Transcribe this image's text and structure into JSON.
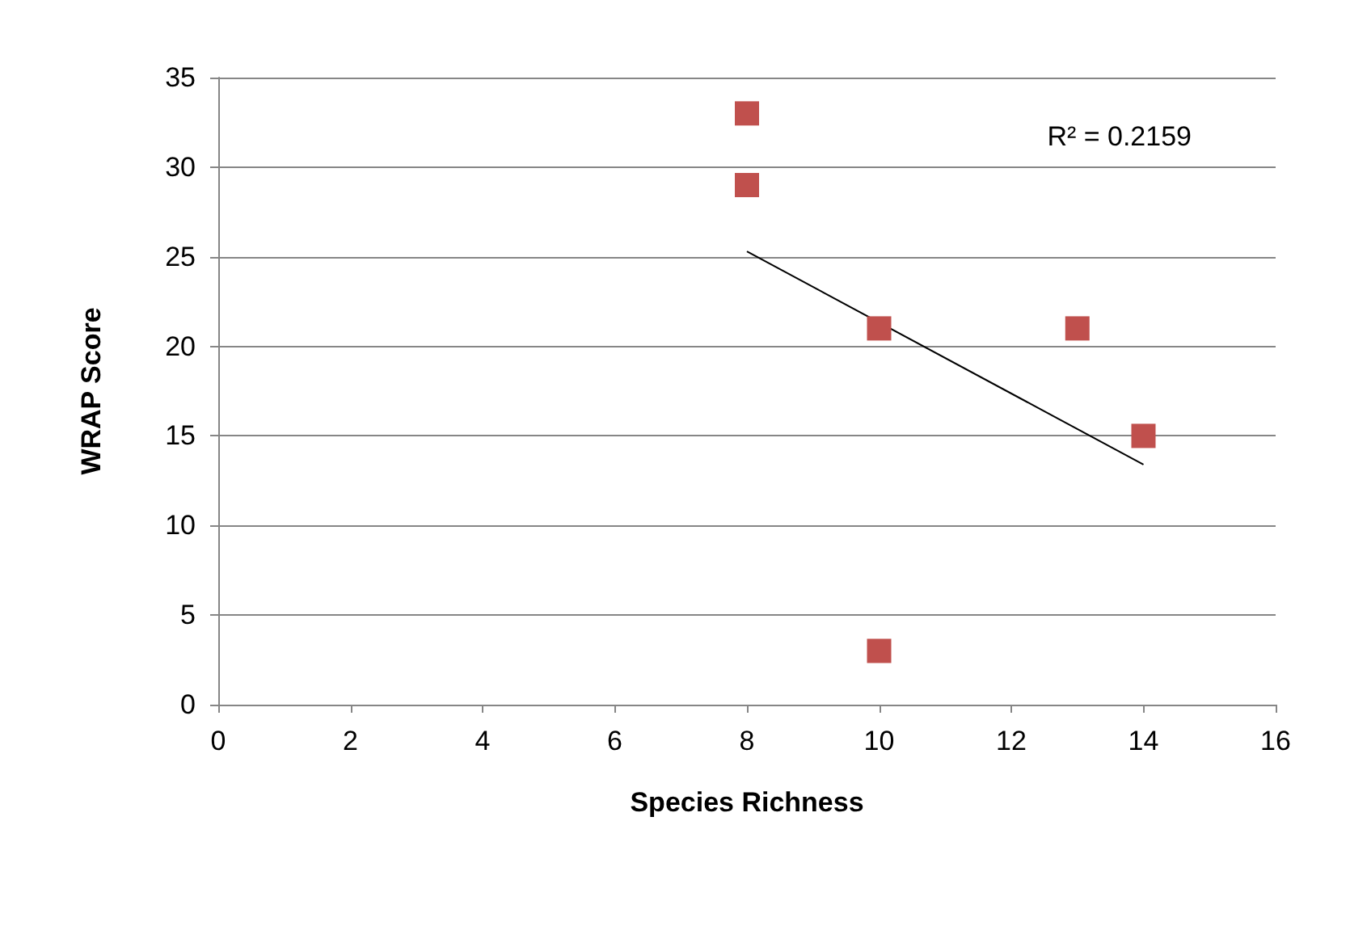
{
  "chart_data": {
    "type": "scatter",
    "xlabel": "Species Richness",
    "ylabel": "WRAP Score",
    "annotations": [
      "R² = 0.2159"
    ],
    "series": [
      {
        "color": "#c0504d",
        "x": [
          8,
          8,
          10,
          10,
          13,
          14
        ],
        "values": [
          33,
          29,
          21,
          3,
          21,
          15
        ]
      },
      {
        "type": "line",
        "color": "#000000",
        "x": [
          8,
          14
        ],
        "values": [
          25.3,
          13.4
        ],
        "marker": "none"
      }
    ],
    "xlim": [
      0,
      16
    ],
    "xticks": [
      0,
      2,
      4,
      6,
      8,
      10,
      12,
      14,
      16
    ],
    "ylim": [
      0,
      35
    ],
    "yticks": [
      0,
      5,
      10,
      15,
      20,
      25,
      30,
      35
    ],
    "grid": "y",
    "marker": "square",
    "line_style": "solid"
  }
}
